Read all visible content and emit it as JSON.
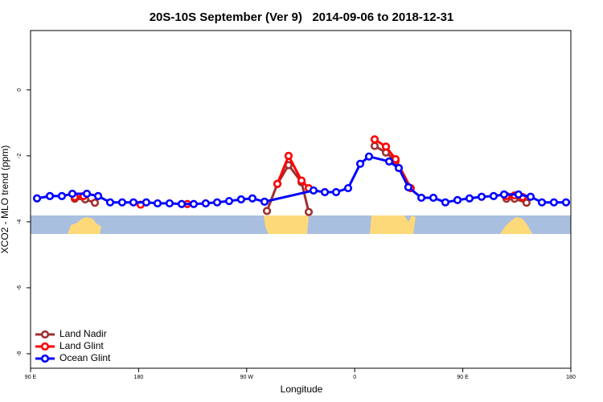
{
  "chart_data": {
    "type": "line",
    "title": "20S-10S September (Ver 9)   2014-09-06 to 2018-12-31",
    "x_label": "Longitude",
    "y_label": "XCO2 - MLO trend (ppm)",
    "xlim": [
      90,
      540
    ],
    "xticks": [
      {
        "value": 90,
        "label": "90 E"
      },
      {
        "value": 180,
        "label": "180"
      },
      {
        "value": 270,
        "label": "90 W"
      },
      {
        "value": 360,
        "label": "0"
      },
      {
        "value": 450,
        "label": "90 E"
      },
      {
        "value": 540,
        "label": "180"
      }
    ],
    "ylim": [
      -8.44,
      1.8
    ],
    "yticks": [
      -8,
      -6,
      -4,
      -2,
      0
    ],
    "legend_position": "bottom-left",
    "series": [
      {
        "name": "Land Nadir",
        "color": "#a03030",
        "x": [
          126.8,
          135.5,
          143.6,
          null,
          286.9,
          295.6,
          304.9,
          315.7,
          321.7,
          null,
          376.6,
          386.0,
          394.0,
          404.7,
          null,
          486.4,
          493.1,
          503.1
        ],
        "values": [
          -3.3,
          -3.32,
          -3.42,
          null,
          -3.67,
          -2.85,
          -2.28,
          -2.8,
          -3.7,
          null,
          -1.7,
          -1.9,
          -2.15,
          -2.95,
          null,
          -3.3,
          -3.3,
          -3.42
        ]
      },
      {
        "name": "Land Glint",
        "color": "#ff0000",
        "x": [
          126.8,
          134.2,
          null,
          181.7,
          null,
          220.6,
          null,
          295.6,
          304.9,
          315.7,
          321.7,
          null,
          376.6,
          386.0,
          394.0,
          406.7,
          null,
          486.4,
          493.1,
          499.8
        ],
        "values": [
          -3.25,
          -3.22,
          null,
          -3.48,
          null,
          -3.46,
          null,
          -2.85,
          -2.0,
          -2.75,
          -2.98,
          null,
          -1.5,
          -1.72,
          -2.1,
          -2.98,
          null,
          -3.22,
          -3.2,
          -3.25
        ]
      },
      {
        "name": "Ocean Glint",
        "color": "#0000ff",
        "x": [
          95.4,
          106.1,
          116.1,
          124.8,
          136.9,
          146.3,
          156.3,
          166.3,
          175.7,
          186.4,
          195.8,
          205.8,
          215.9,
          225.9,
          235.9,
          245.4,
          255.4,
          265.4,
          274.8,
          284.9,
          325.7,
          335.1,
          344.5,
          354.5,
          364.6,
          371.9,
          388.7,
          396.7,
          404.7,
          415.5,
          425.5,
          435.5,
          445.6,
          455.6,
          465.7,
          475.7,
          484.4,
          496.4,
          506.5,
          515.9,
          525.9,
          536.0
        ],
        "values": [
          -3.29,
          -3.22,
          -3.22,
          -3.15,
          -3.15,
          -3.22,
          -3.41,
          -3.41,
          -3.41,
          -3.41,
          -3.44,
          -3.44,
          -3.46,
          -3.46,
          -3.44,
          -3.41,
          -3.37,
          -3.32,
          -3.29,
          -3.39,
          -3.05,
          -3.1,
          -3.1,
          -2.98,
          -2.24,
          -2.02,
          -2.17,
          -2.37,
          -2.95,
          -3.27,
          -3.27,
          -3.41,
          -3.34,
          -3.29,
          -3.24,
          -3.22,
          -3.17,
          -3.17,
          -3.24,
          -3.41,
          -3.41,
          -3.41
        ]
      }
    ]
  }
}
